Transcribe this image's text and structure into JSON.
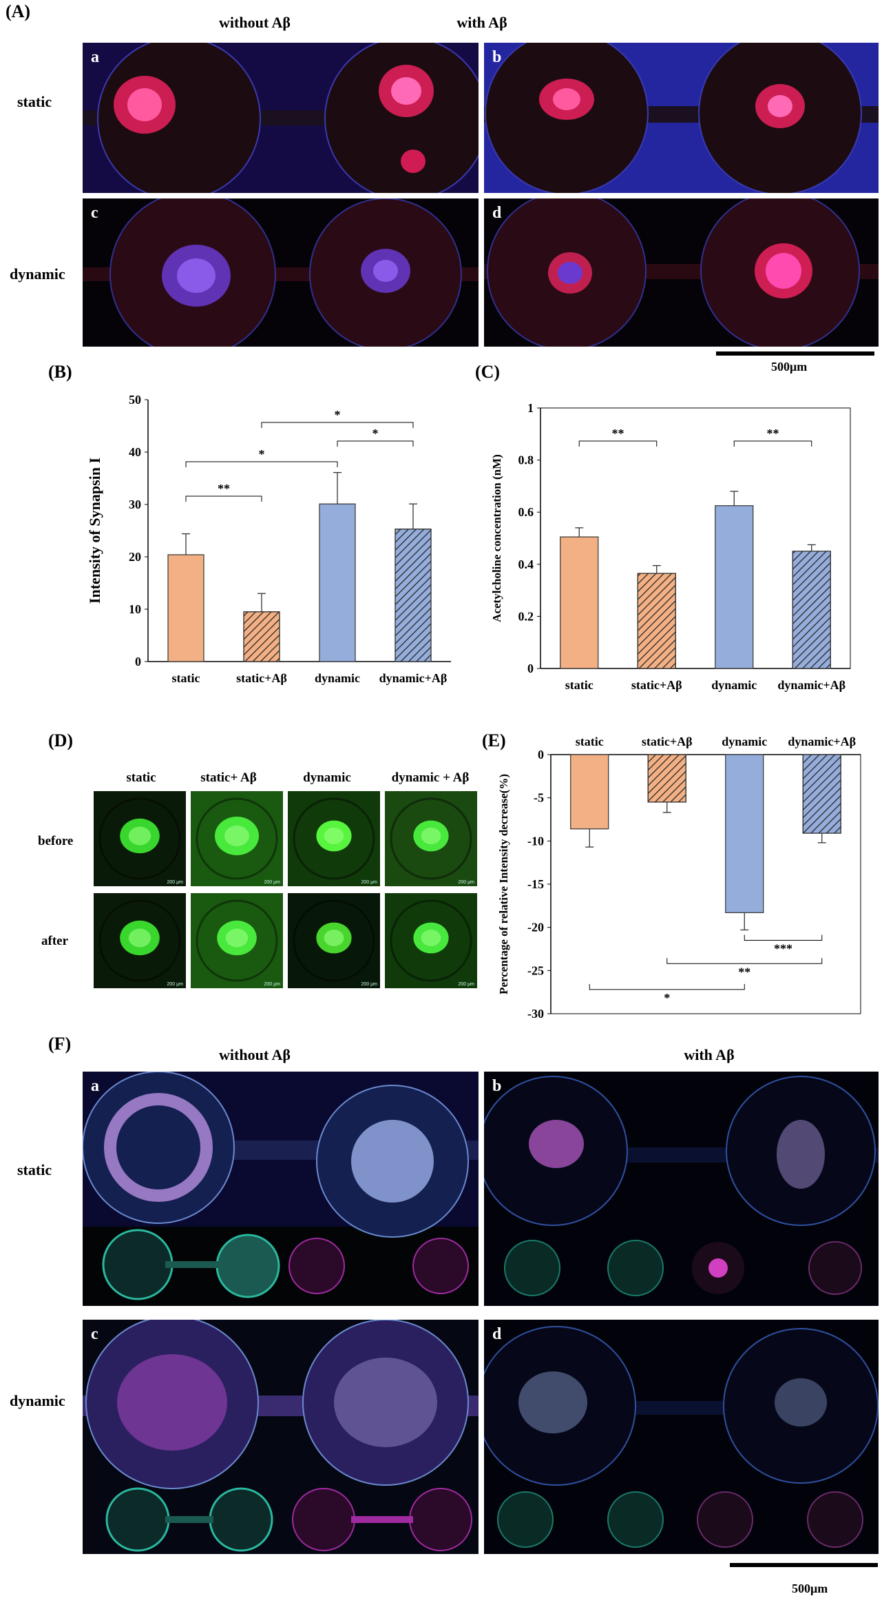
{
  "panelA": {
    "label": "(A)",
    "col_headers": [
      "without Aβ",
      "with Aβ"
    ],
    "row_labels": [
      "static",
      "dynamic"
    ],
    "sublabels": [
      "a",
      "b",
      "c",
      "d"
    ],
    "scale": "500μm"
  },
  "panelB": {
    "label": "(B)",
    "chart_data": {
      "type": "bar",
      "categories": [
        "static",
        "static+Aβ",
        "dynamic",
        "dynamic+Aβ"
      ],
      "values": [
        20.4,
        9.5,
        30.1,
        25.3
      ],
      "errors": [
        4.0,
        3.5,
        6.0,
        4.8
      ],
      "ylabel": "Intensity of Synapsin I",
      "ylim": [
        0,
        50
      ],
      "yticks": [
        "0",
        "10",
        "20",
        "30",
        "40",
        "50"
      ],
      "colors": [
        "#F3B085",
        "#F3B085",
        "#95ADDB",
        "#95ADDB"
      ],
      "hatched": [
        false,
        true,
        false,
        true
      ],
      "significance": [
        {
          "from": 0,
          "to": 1,
          "label": "**"
        },
        {
          "from": 0,
          "to": 2,
          "label": "*"
        },
        {
          "from": 2,
          "to": 3,
          "label": "*"
        },
        {
          "from": 1,
          "to": 3,
          "label": "*"
        }
      ]
    }
  },
  "panelC": {
    "label": "(C)",
    "chart_data": {
      "type": "bar",
      "categories": [
        "static",
        "static+Aβ",
        "dynamic",
        "dynamic+Aβ"
      ],
      "values": [
        0.505,
        0.365,
        0.625,
        0.45
      ],
      "errors": [
        0.035,
        0.03,
        0.055,
        0.025
      ],
      "ylabel": "Acetylcholine concentration (nM)",
      "ylim": [
        0,
        1
      ],
      "yticks": [
        "0",
        "0.2",
        "0.4",
        "0.6",
        "0.8",
        "1"
      ],
      "colors": [
        "#F3B085",
        "#F3B085",
        "#95ADDB",
        "#95ADDB"
      ],
      "hatched": [
        false,
        true,
        false,
        true
      ],
      "significance": [
        {
          "from": 0,
          "to": 1,
          "label": "**"
        },
        {
          "from": 2,
          "to": 3,
          "label": "**"
        }
      ]
    }
  },
  "panelD": {
    "label": "(D)",
    "col_headers": [
      "static",
      "static+ Aβ",
      "dynamic",
      "dynamic + Aβ"
    ],
    "row_labels": [
      "before",
      "after"
    ],
    "scale_small": "200 μm"
  },
  "panelE": {
    "label": "(E)",
    "chart_data": {
      "type": "bar",
      "categories": [
        "static",
        "static+Aβ",
        "dynamic",
        "dynamic+Aβ"
      ],
      "values": [
        -8.6,
        -5.5,
        -18.3,
        -9.1
      ],
      "errors": [
        2.1,
        1.2,
        2.0,
        1.1
      ],
      "ylabel": "Percentage of relative Intensity decrease(%)",
      "ylim": [
        -30,
        0
      ],
      "yticks": [
        "0",
        "-5",
        "-10",
        "-15",
        "-20",
        "-25",
        "-30"
      ],
      "colors": [
        "#F3B085",
        "#F3B085",
        "#95ADDB",
        "#95ADDB"
      ],
      "hatched": [
        false,
        true,
        false,
        true
      ],
      "significance": [
        {
          "from": 2,
          "to": 3,
          "label": "***",
          "y": -21.5
        },
        {
          "from": 1,
          "to": 3,
          "label": "**",
          "y": -24.2
        },
        {
          "from": 0,
          "to": 2,
          "label": "*",
          "y": -27.2
        }
      ]
    }
  },
  "panelF": {
    "label": "(F)",
    "col_headers": [
      "without Aβ",
      "with Aβ"
    ],
    "row_labels": [
      "static",
      "dynamic"
    ],
    "sublabels": [
      "a",
      "b",
      "c",
      "d"
    ],
    "scale": "500μm"
  }
}
